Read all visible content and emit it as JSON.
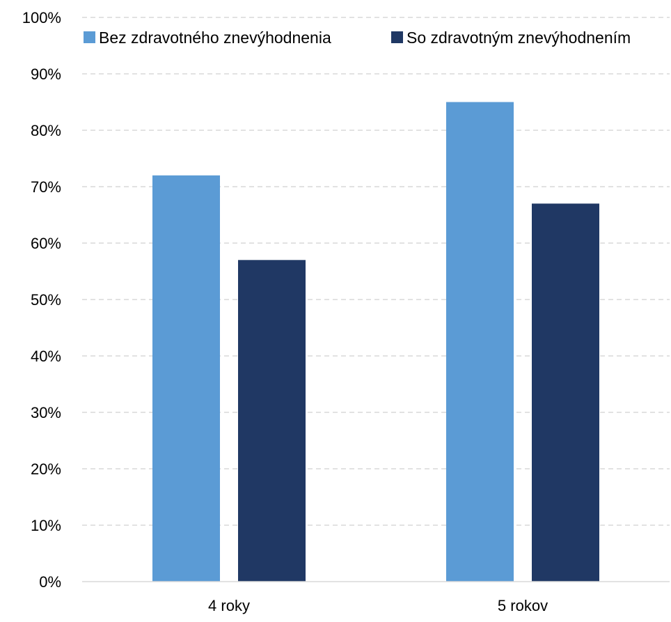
{
  "chart_data": {
    "type": "bar",
    "categories": [
      "4 roky",
      "5 rokov"
    ],
    "series": [
      {
        "name": "Bez zdravotného znevýhodnenia",
        "values": [
          72,
          85
        ],
        "color": "#5B9BD5"
      },
      {
        "name": "So zdravotným znevýhodnením",
        "values": [
          57,
          67
        ],
        "color": "#203864"
      }
    ],
    "title": "",
    "xlabel": "",
    "ylabel": "",
    "ylim": [
      0,
      100
    ],
    "yticks": [
      "0%",
      "10%",
      "20%",
      "30%",
      "40%",
      "50%",
      "60%",
      "70%",
      "80%",
      "90%",
      "100%"
    ],
    "grid": true,
    "legend_position": "top"
  }
}
